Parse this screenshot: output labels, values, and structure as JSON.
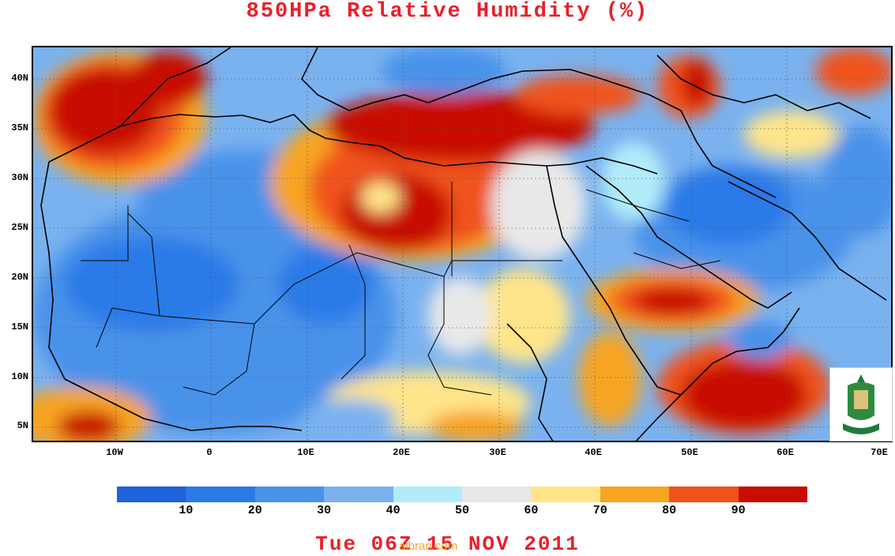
{
  "title": "850HPa Relative Humidity (%)",
  "footer": "Tue 06Z 15 NOV 2011",
  "watermark": "albrari.com",
  "lat_labels": [
    "40N",
    "35N",
    "30N",
    "25N",
    "20N",
    "15N",
    "10N",
    "5N"
  ],
  "lon_labels": [
    "10W",
    "0",
    "10E",
    "20E",
    "30E",
    "40E",
    "50E",
    "60E",
    "70E"
  ],
  "colorbar": {
    "colors": [
      "#1f62d9",
      "#2b7ae8",
      "#4a92ea",
      "#7ab2ef",
      "#b2ecfa",
      "#e8e8e8",
      "#ffe58a",
      "#f7a420",
      "#f0521a",
      "#c80c00"
    ],
    "labels": [
      "10",
      "20",
      "30",
      "40",
      "50",
      "60",
      "70",
      "80",
      "90"
    ]
  },
  "logo": {
    "icon": "university-seal-icon"
  }
}
